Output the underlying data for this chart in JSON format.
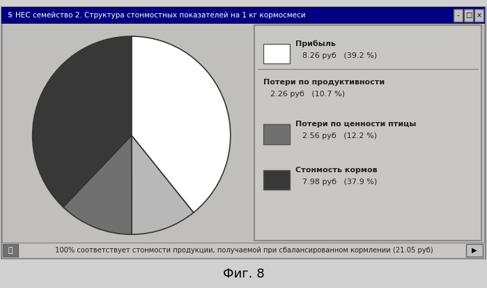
{
  "title": "НЕС семейство 2. Структура стонмостных показателей на 1 кг кормосмеси",
  "slices": [
    8.26,
    2.26,
    2.56,
    7.98
  ],
  "labels": [
    "Прибыль",
    "Потери по продуктивности",
    "Потери по ценности птицы",
    "Стонмость кормов"
  ],
  "values_text": [
    "8.26 руб   (39.2 %)",
    "2.26 руб   (10.7 %)",
    "2.56 руб   (12.2 %)",
    "7.98 руб   (37.9 %)"
  ],
  "colors": [
    "#ffffff",
    "#b8b8b8",
    "#707070",
    "#383838"
  ],
  "edge_color": "#333333",
  "startangle": 90,
  "footer": "100% соответствует стонмости продукции, получаемой при сбалансированном кормлении (21.05 руб)",
  "bg_color": "#b8b8b8",
  "titlebar_color": "#000080",
  "content_bg": "#c0bfbc",
  "legend_bg": "#c8c7c4",
  "fig_caption": "Фиг. 8",
  "pie_startangle": 90
}
